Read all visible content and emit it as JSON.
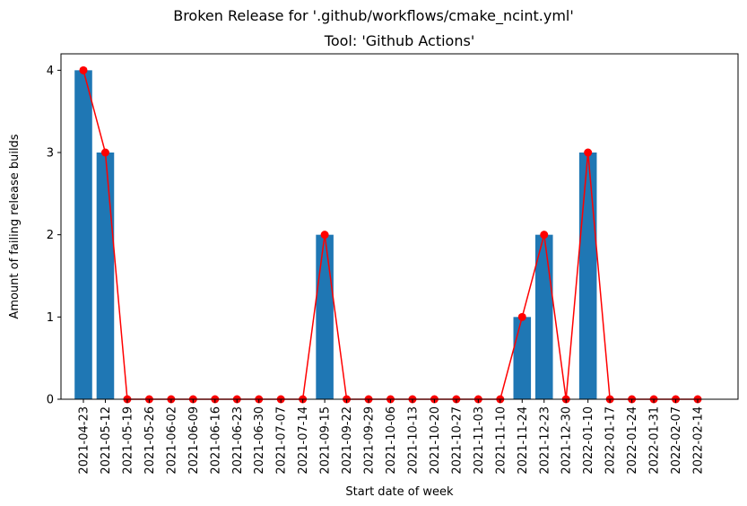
{
  "suptitle": "Broken Release for '.github/workflows/cmake_ncint.yml'",
  "chart_data": {
    "type": "bar",
    "title": "Tool: 'Github Actions'",
    "xlabel": "Start date of week",
    "ylabel": "Amount of failing release builds",
    "categories": [
      "2021-04-23",
      "2021-05-12",
      "2021-05-19",
      "2021-05-26",
      "2021-06-02",
      "2021-06-09",
      "2021-06-16",
      "2021-06-23",
      "2021-06-30",
      "2021-07-07",
      "2021-07-14",
      "2021-09-15",
      "2021-09-22",
      "2021-09-29",
      "2021-10-06",
      "2021-10-13",
      "2021-10-20",
      "2021-10-27",
      "2021-11-03",
      "2021-11-10",
      "2021-11-24",
      "2021-12-23",
      "2021-12-30",
      "2022-01-10",
      "2022-01-17",
      "2022-01-24",
      "2022-01-31",
      "2022-02-07",
      "2022-02-14"
    ],
    "values": [
      4,
      3,
      0,
      0,
      0,
      0,
      0,
      0,
      0,
      0,
      0,
      2,
      0,
      0,
      0,
      0,
      0,
      0,
      0,
      0,
      1,
      2,
      0,
      3,
      0,
      0,
      0,
      0,
      0
    ],
    "overlay_line": {
      "color": "#ff0000",
      "marker": "circle"
    },
    "bar_color": "#1f77b4",
    "ylim": [
      0,
      4.2
    ],
    "yticks": [
      0,
      1,
      2,
      3,
      4
    ],
    "grid": false,
    "legend": "none"
  }
}
